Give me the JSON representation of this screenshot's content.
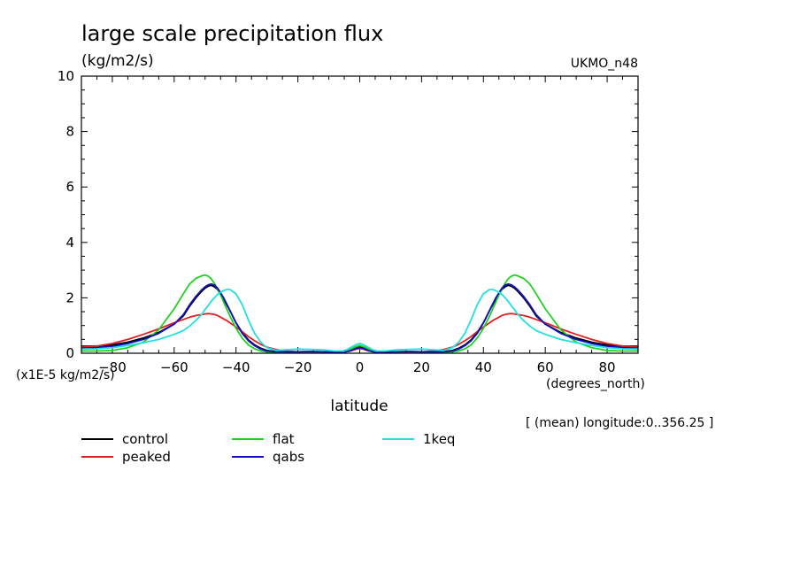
{
  "header": {
    "title": "large scale precipitation flux",
    "units": "(kg/m2/s)",
    "model": "UKMO_n48",
    "scale_note": "(x1E-5 kg/m2/s)",
    "x_units": "(degrees_north)",
    "xlabel": "latitude",
    "mean_note": "[ (mean) longitude:0..356.25 ]"
  },
  "chart_data": {
    "type": "line",
    "title": "large scale precipitation flux",
    "xlabel": "latitude",
    "ylabel": "(kg/m2/s)",
    "xlim": [
      -90,
      90
    ],
    "ylim": [
      0,
      10
    ],
    "x_ticks": [
      -80,
      -60,
      -40,
      -20,
      0,
      20,
      40,
      60,
      80
    ],
    "y_ticks": [
      0,
      2,
      4,
      6,
      8,
      10
    ],
    "legend_position": "bottom",
    "x": [
      -90,
      -85,
      -80,
      -75,
      -70,
      -65,
      -60,
      -57,
      -55,
      -53,
      -51,
      -50,
      -49,
      -48,
      -47,
      -46,
      -45,
      -44,
      -43,
      -42,
      -40,
      -38,
      -36,
      -34,
      -32,
      -30,
      -27,
      -24,
      -20,
      -16,
      -12,
      -8,
      -5,
      -3,
      -1,
      0,
      1,
      3,
      5,
      8,
      12,
      16,
      20,
      24,
      27,
      30,
      32,
      34,
      36,
      38,
      40,
      42,
      43,
      44,
      45,
      46,
      47,
      48,
      49,
      50,
      51,
      53,
      55,
      57,
      60,
      65,
      70,
      75,
      80,
      85,
      90
    ],
    "series": [
      {
        "name": "control",
        "color": "#000000",
        "values": [
          0.25,
          0.26,
          0.3,
          0.4,
          0.55,
          0.75,
          1.05,
          1.35,
          1.7,
          2.0,
          2.25,
          2.35,
          2.42,
          2.45,
          2.4,
          2.3,
          2.12,
          1.95,
          1.75,
          1.55,
          1.1,
          0.75,
          0.48,
          0.3,
          0.18,
          0.1,
          0.06,
          0.05,
          0.05,
          0.06,
          0.05,
          0.04,
          0.04,
          0.1,
          0.2,
          0.22,
          0.2,
          0.1,
          0.04,
          0.04,
          0.05,
          0.06,
          0.05,
          0.05,
          0.06,
          0.1,
          0.18,
          0.3,
          0.48,
          0.75,
          1.1,
          1.55,
          1.75,
          1.95,
          2.12,
          2.3,
          2.4,
          2.45,
          2.42,
          2.35,
          2.25,
          2.0,
          1.7,
          1.35,
          1.05,
          0.75,
          0.55,
          0.4,
          0.3,
          0.26,
          0.25
        ]
      },
      {
        "name": "peaked",
        "color": "#e02020",
        "values": [
          0.22,
          0.26,
          0.35,
          0.5,
          0.68,
          0.88,
          1.1,
          1.22,
          1.3,
          1.36,
          1.4,
          1.42,
          1.43,
          1.42,
          1.4,
          1.36,
          1.3,
          1.24,
          1.18,
          1.1,
          0.95,
          0.78,
          0.6,
          0.45,
          0.32,
          0.22,
          0.13,
          0.08,
          0.05,
          0.05,
          0.05,
          0.04,
          0.04,
          0.08,
          0.15,
          0.17,
          0.15,
          0.08,
          0.04,
          0.04,
          0.05,
          0.05,
          0.05,
          0.08,
          0.13,
          0.22,
          0.32,
          0.45,
          0.6,
          0.78,
          0.95,
          1.1,
          1.18,
          1.24,
          1.3,
          1.36,
          1.4,
          1.42,
          1.43,
          1.42,
          1.4,
          1.36,
          1.3,
          1.22,
          1.1,
          0.88,
          0.68,
          0.5,
          0.35,
          0.26,
          0.22
        ]
      },
      {
        "name": "flat",
        "color": "#20d020",
        "values": [
          0.08,
          0.08,
          0.1,
          0.2,
          0.4,
          0.85,
          1.6,
          2.15,
          2.5,
          2.7,
          2.8,
          2.82,
          2.78,
          2.68,
          2.52,
          2.32,
          2.1,
          1.85,
          1.6,
          1.35,
          0.9,
          0.55,
          0.3,
          0.16,
          0.08,
          0.05,
          0.04,
          0.05,
          0.05,
          0.06,
          0.05,
          0.04,
          0.05,
          0.15,
          0.25,
          0.28,
          0.25,
          0.15,
          0.05,
          0.04,
          0.05,
          0.06,
          0.05,
          0.05,
          0.04,
          0.05,
          0.08,
          0.16,
          0.3,
          0.55,
          0.9,
          1.35,
          1.6,
          1.85,
          2.1,
          2.32,
          2.52,
          2.68,
          2.78,
          2.82,
          2.8,
          2.7,
          2.5,
          2.15,
          1.6,
          0.85,
          0.4,
          0.2,
          0.1,
          0.08,
          0.08
        ]
      },
      {
        "name": "qabs",
        "color": "#1010c0",
        "values": [
          0.18,
          0.2,
          0.25,
          0.35,
          0.5,
          0.72,
          1.05,
          1.4,
          1.75,
          2.05,
          2.3,
          2.4,
          2.47,
          2.5,
          2.46,
          2.35,
          2.18,
          2.0,
          1.78,
          1.55,
          1.1,
          0.72,
          0.45,
          0.27,
          0.15,
          0.08,
          0.05,
          0.05,
          0.05,
          0.06,
          0.05,
          0.04,
          0.04,
          0.09,
          0.18,
          0.2,
          0.18,
          0.09,
          0.04,
          0.04,
          0.05,
          0.06,
          0.05,
          0.05,
          0.05,
          0.08,
          0.15,
          0.27,
          0.45,
          0.72,
          1.1,
          1.55,
          1.78,
          2.0,
          2.18,
          2.35,
          2.46,
          2.5,
          2.47,
          2.4,
          2.3,
          2.05,
          1.75,
          1.4,
          1.05,
          0.72,
          0.5,
          0.35,
          0.25,
          0.2,
          0.18
        ]
      },
      {
        "name": "1keq",
        "color": "#20e0e0",
        "values": [
          0.15,
          0.16,
          0.2,
          0.28,
          0.38,
          0.5,
          0.68,
          0.82,
          0.98,
          1.18,
          1.42,
          1.58,
          1.72,
          1.88,
          2.0,
          2.12,
          2.2,
          2.26,
          2.3,
          2.3,
          2.15,
          1.75,
          1.2,
          0.72,
          0.4,
          0.2,
          0.1,
          0.12,
          0.15,
          0.14,
          0.12,
          0.08,
          0.08,
          0.2,
          0.32,
          0.35,
          0.32,
          0.2,
          0.08,
          0.08,
          0.12,
          0.14,
          0.15,
          0.12,
          0.1,
          0.2,
          0.4,
          0.72,
          1.2,
          1.75,
          2.15,
          2.3,
          2.3,
          2.26,
          2.2,
          2.12,
          2.0,
          1.88,
          1.72,
          1.58,
          1.42,
          1.18,
          0.98,
          0.82,
          0.68,
          0.5,
          0.38,
          0.28,
          0.2,
          0.16,
          0.15
        ]
      }
    ]
  }
}
